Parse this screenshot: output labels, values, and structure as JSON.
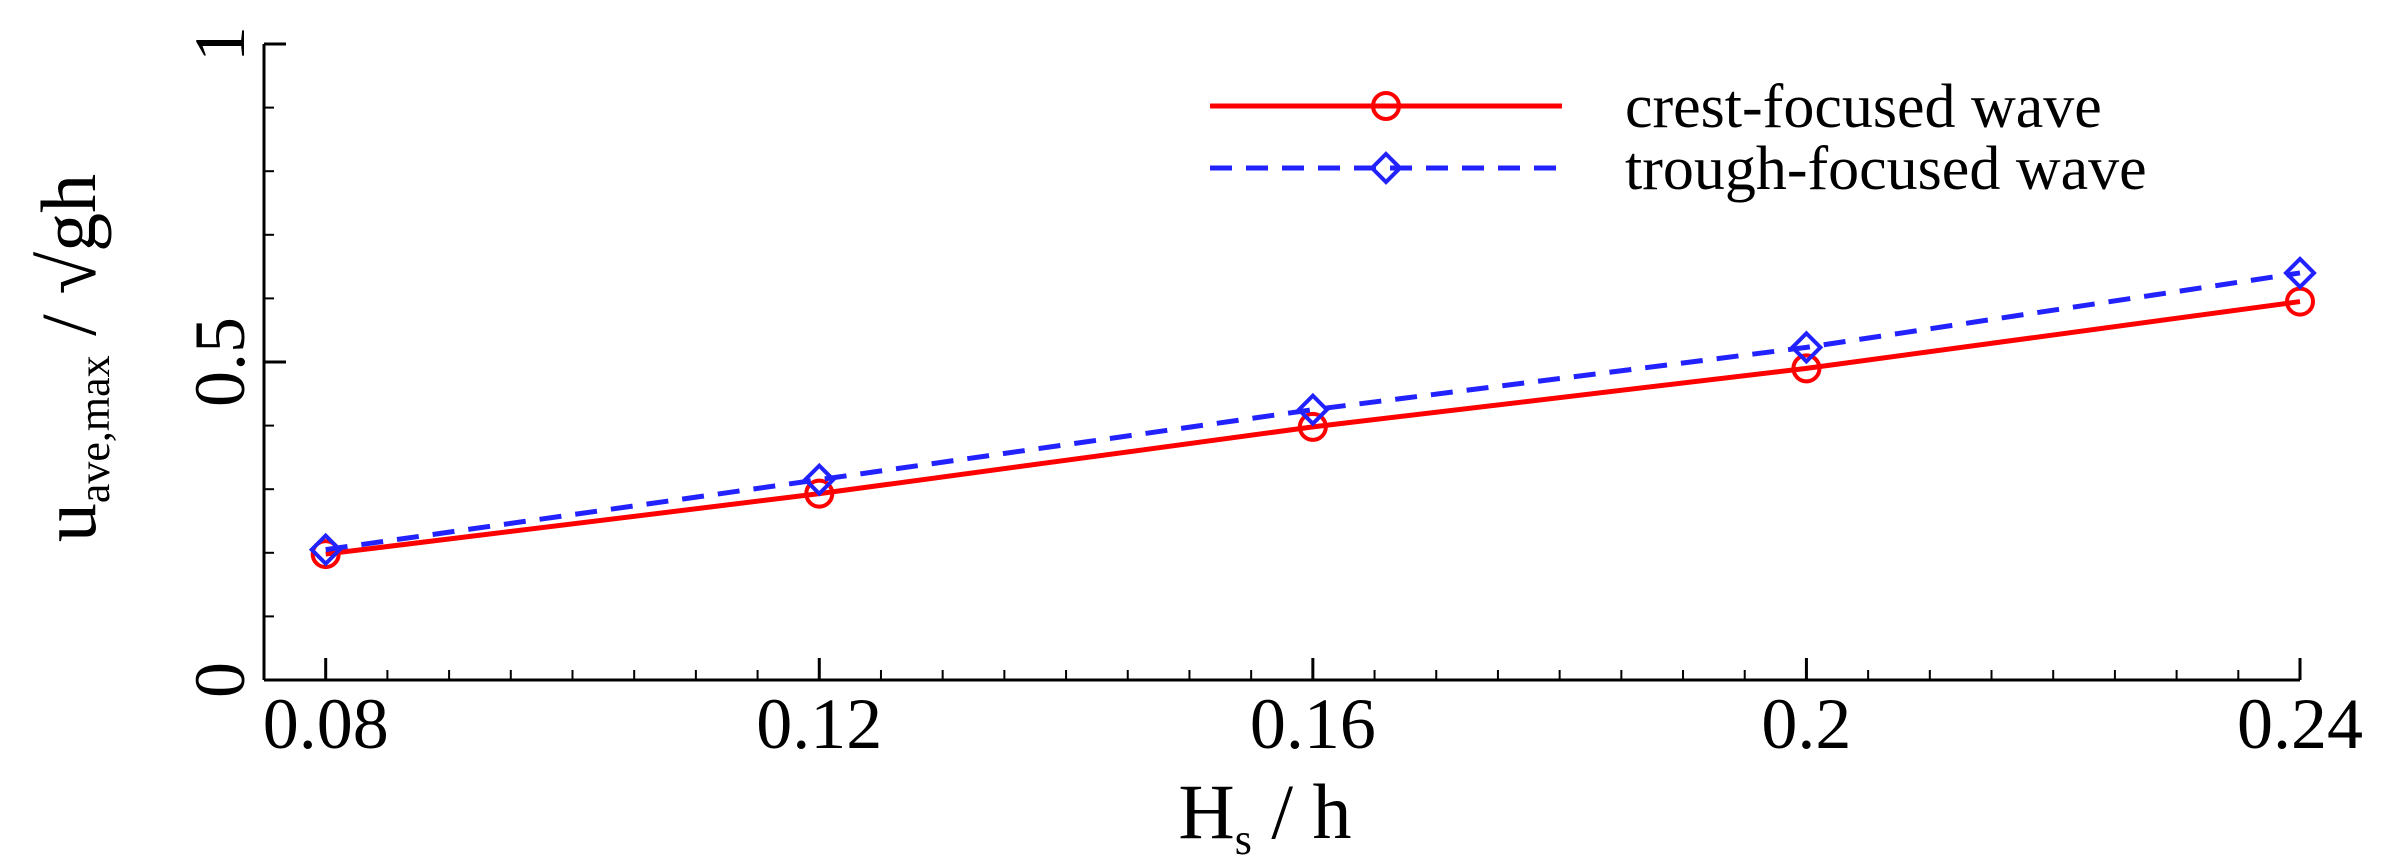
{
  "chart_data": {
    "type": "line",
    "xlabel": {
      "main": "H",
      "sub": "s",
      "rest": " / h"
    },
    "ylabel": {
      "main": "u",
      "sub": "ave,max",
      "rest": " / √gh"
    },
    "xlim": [
      0.075,
      0.24
    ],
    "ylim": [
      0,
      1
    ],
    "x_ticks": [
      0.08,
      0.12,
      0.16,
      0.2,
      0.24
    ],
    "x_tick_labels": [
      "0.08",
      "0.12",
      "0.16",
      "0.2",
      "0.24"
    ],
    "y_ticks": [
      0,
      0.5,
      1
    ],
    "y_tick_labels": [
      "0",
      "0.5",
      "1"
    ],
    "x_minor_step": 0.005,
    "y_minor_step": 0.1,
    "grid": false,
    "legend_position": "top-right",
    "series": [
      {
        "name": "crest-focused wave",
        "color": "#ff0000",
        "line_style": "solid",
        "marker": "circle",
        "x": [
          0.08,
          0.12,
          0.16,
          0.2,
          0.24
        ],
        "y": [
          0.198,
          0.293,
          0.398,
          0.49,
          0.595
        ]
      },
      {
        "name": "trough-focused wave",
        "color": "#2222ff",
        "line_style": "dashed",
        "marker": "diamond",
        "x": [
          0.08,
          0.12,
          0.16,
          0.2,
          0.24
        ],
        "y": [
          0.205,
          0.315,
          0.425,
          0.523,
          0.64
        ]
      }
    ]
  }
}
